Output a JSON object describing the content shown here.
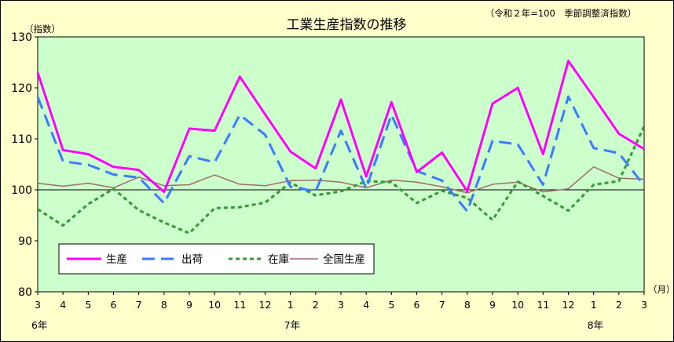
{
  "chart_data": {
    "type": "line",
    "title": "工業生産指数の推移",
    "subtitle": "（令和２年=100　季節調整済指数）",
    "ylabel": "（指数）",
    "xunit": "（月）",
    "ylim": [
      80,
      130
    ],
    "yticks": [
      80,
      90,
      100,
      110,
      120,
      130
    ],
    "grid": false,
    "legend_position": "lower-left",
    "categories": [
      "3",
      "4",
      "5",
      "6",
      "7",
      "8",
      "9",
      "10",
      "11",
      "12",
      "1",
      "2",
      "3",
      "4",
      "5",
      "6",
      "7",
      "8",
      "9",
      "10",
      "11",
      "12",
      "1",
      "2",
      "3"
    ],
    "year_labels": [
      {
        "label": "6年",
        "index": 0
      },
      {
        "label": "7年",
        "index": 10
      },
      {
        "label": "8年",
        "index": 22
      }
    ],
    "series": [
      {
        "name": "生産",
        "color": "#ff00ff",
        "style": "solid",
        "width": 3,
        "values": [
          123.0,
          107.8,
          107.0,
          104.5,
          103.9,
          99.6,
          112.0,
          111.6,
          122.2,
          114.8,
          107.5,
          104.2,
          117.7,
          102.6,
          117.2,
          103.5,
          107.3,
          99.7,
          116.9,
          120.0,
          107.0,
          125.3,
          118.2,
          111.0,
          108.0
        ]
      },
      {
        "name": "出荷",
        "color": "#3a7bff",
        "style": "dashed",
        "width": 3,
        "values": [
          118.2,
          105.6,
          104.9,
          103.0,
          102.4,
          97.4,
          106.6,
          105.4,
          114.7,
          110.8,
          100.6,
          99.7,
          111.6,
          100.3,
          114.7,
          103.7,
          101.8,
          95.8,
          109.6,
          108.9,
          101.0,
          118.3,
          108.2,
          107.2,
          100.8
        ]
      },
      {
        "name": "在庫",
        "color": "#339933",
        "style": "dotted",
        "width": 3,
        "values": [
          96.2,
          93.0,
          97.2,
          100.2,
          96.0,
          93.6,
          91.5,
          96.4,
          96.6,
          97.5,
          101.4,
          98.9,
          99.7,
          101.7,
          101.5,
          97.4,
          99.8,
          98.4,
          94.1,
          101.6,
          98.8,
          95.9,
          101.0,
          101.7,
          112.5
        ]
      },
      {
        "name": "全国生産",
        "color": "#9e6b6b",
        "style": "solid",
        "width": 1.5,
        "values": [
          101.3,
          100.7,
          101.3,
          100.4,
          102.5,
          100.8,
          101.0,
          102.9,
          101.1,
          100.8,
          101.8,
          101.9,
          101.5,
          100.4,
          101.9,
          101.5,
          100.6,
          99.4,
          101.1,
          101.5,
          99.6,
          100.2,
          104.5,
          102.3,
          102.1
        ]
      }
    ]
  }
}
